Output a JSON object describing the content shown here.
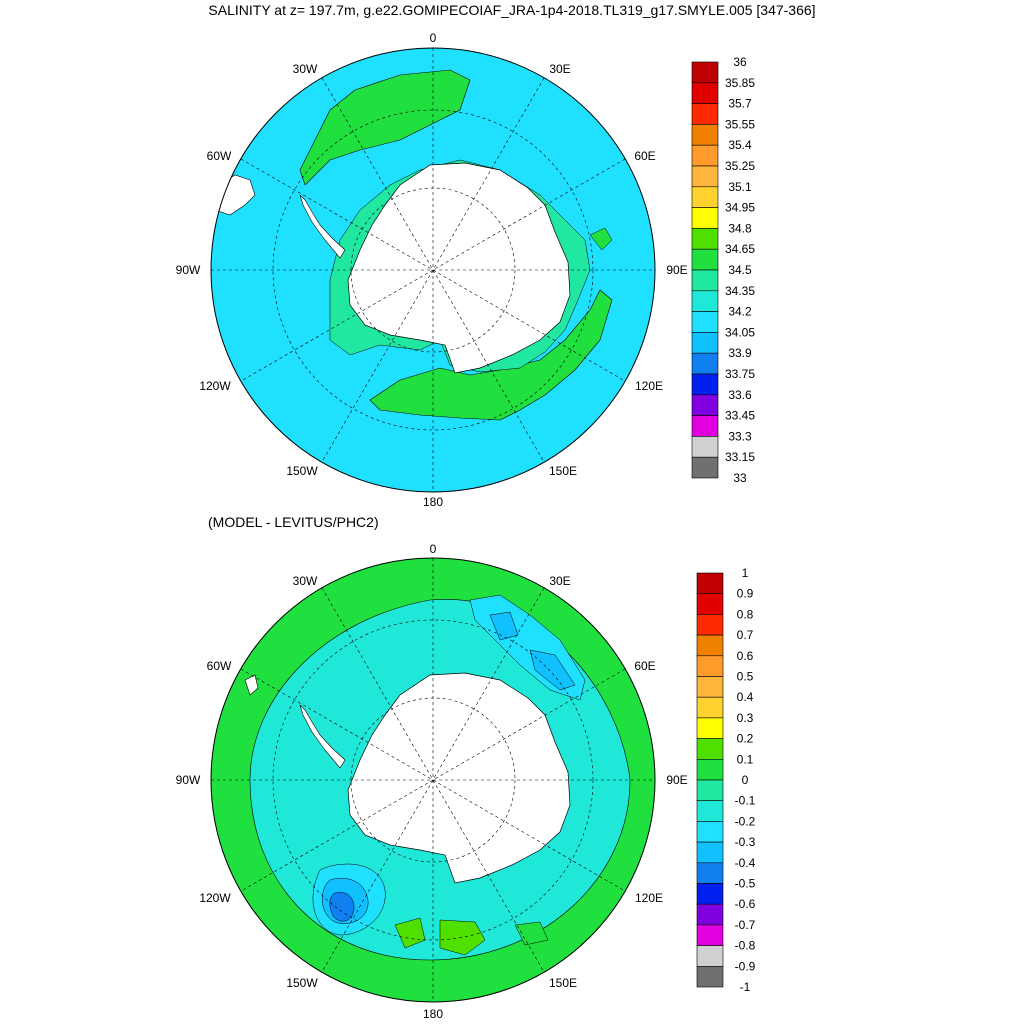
{
  "top_panel": {
    "title": "SALINITY at z= 197.7m, g.e22.GOMIPECOIAF_JRA-1p4-2018.TL319_g17.SMYLE.005 [347-366]",
    "longitude_labels": {
      "n": "0",
      "ne": "30E",
      "e1": "60E",
      "e": "90E",
      "se1": "120E",
      "se": "150E",
      "s": "180",
      "sw": "150W",
      "sw1": "120W",
      "w": "90W",
      "w1": "60W",
      "nw": "30W"
    },
    "colorbar": {
      "labels": [
        "36",
        "35.85",
        "35.7",
        "35.55",
        "35.4",
        "35.25",
        "35.1",
        "34.95",
        "34.8",
        "34.65",
        "34.5",
        "34.35",
        "34.2",
        "34.05",
        "33.9",
        "33.75",
        "33.6",
        "33.45",
        "33.3",
        "33.15",
        "33"
      ],
      "colors": [
        "#c00000",
        "#e00000",
        "#ff2a00",
        "#f08000",
        "#ff9b2a",
        "#ffb43c",
        "#ffd230",
        "#ffff00",
        "#50e000",
        "#20e040",
        "#20e8a0",
        "#20e8d8",
        "#20e0ff",
        "#10c0ff",
        "#1080f0",
        "#0020f0",
        "#8000e0",
        "#e000e0",
        "#d0d0d0",
        "#707070"
      ]
    },
    "map": {
      "ocean_color": "#20e0ff",
      "band_color": "#20e040",
      "shelf_color": "#20e8a0",
      "land_color": "#ffffff"
    }
  },
  "bottom_panel": {
    "subtitle": "(MODEL - LEVITUS/PHC2)",
    "longitude_labels": {
      "n": "0",
      "ne": "30E",
      "e1": "60E",
      "e": "90E",
      "se1": "120E",
      "se": "150E",
      "s": "180",
      "sw": "150W",
      "sw1": "120W",
      "w": "90W",
      "w1": "60W",
      "nw": "30W"
    },
    "colorbar": {
      "labels": [
        "1",
        "0.9",
        "0.8",
        "0.7",
        "0.6",
        "0.5",
        "0.4",
        "0.3",
        "0.2",
        "0.1",
        "0",
        "-0.1",
        "-0.2",
        "-0.3",
        "-0.4",
        "-0.5",
        "-0.6",
        "-0.7",
        "-0.8",
        "-0.9",
        "-1"
      ],
      "colors": [
        "#c00000",
        "#e00000",
        "#ff2a00",
        "#f08000",
        "#ff9b2a",
        "#ffb43c",
        "#ffd230",
        "#ffff00",
        "#50e000",
        "#20e040",
        "#20e8a0",
        "#20e8d8",
        "#20e0ff",
        "#10c0ff",
        "#1080f0",
        "#0020f0",
        "#8000e0",
        "#e000e0",
        "#d0d0d0",
        "#707070"
      ]
    },
    "map": {
      "ocean_color": "#20e8d8",
      "band_color": "#20e040",
      "shelf_color": "#20e0ff",
      "land_color": "#ffffff"
    }
  }
}
